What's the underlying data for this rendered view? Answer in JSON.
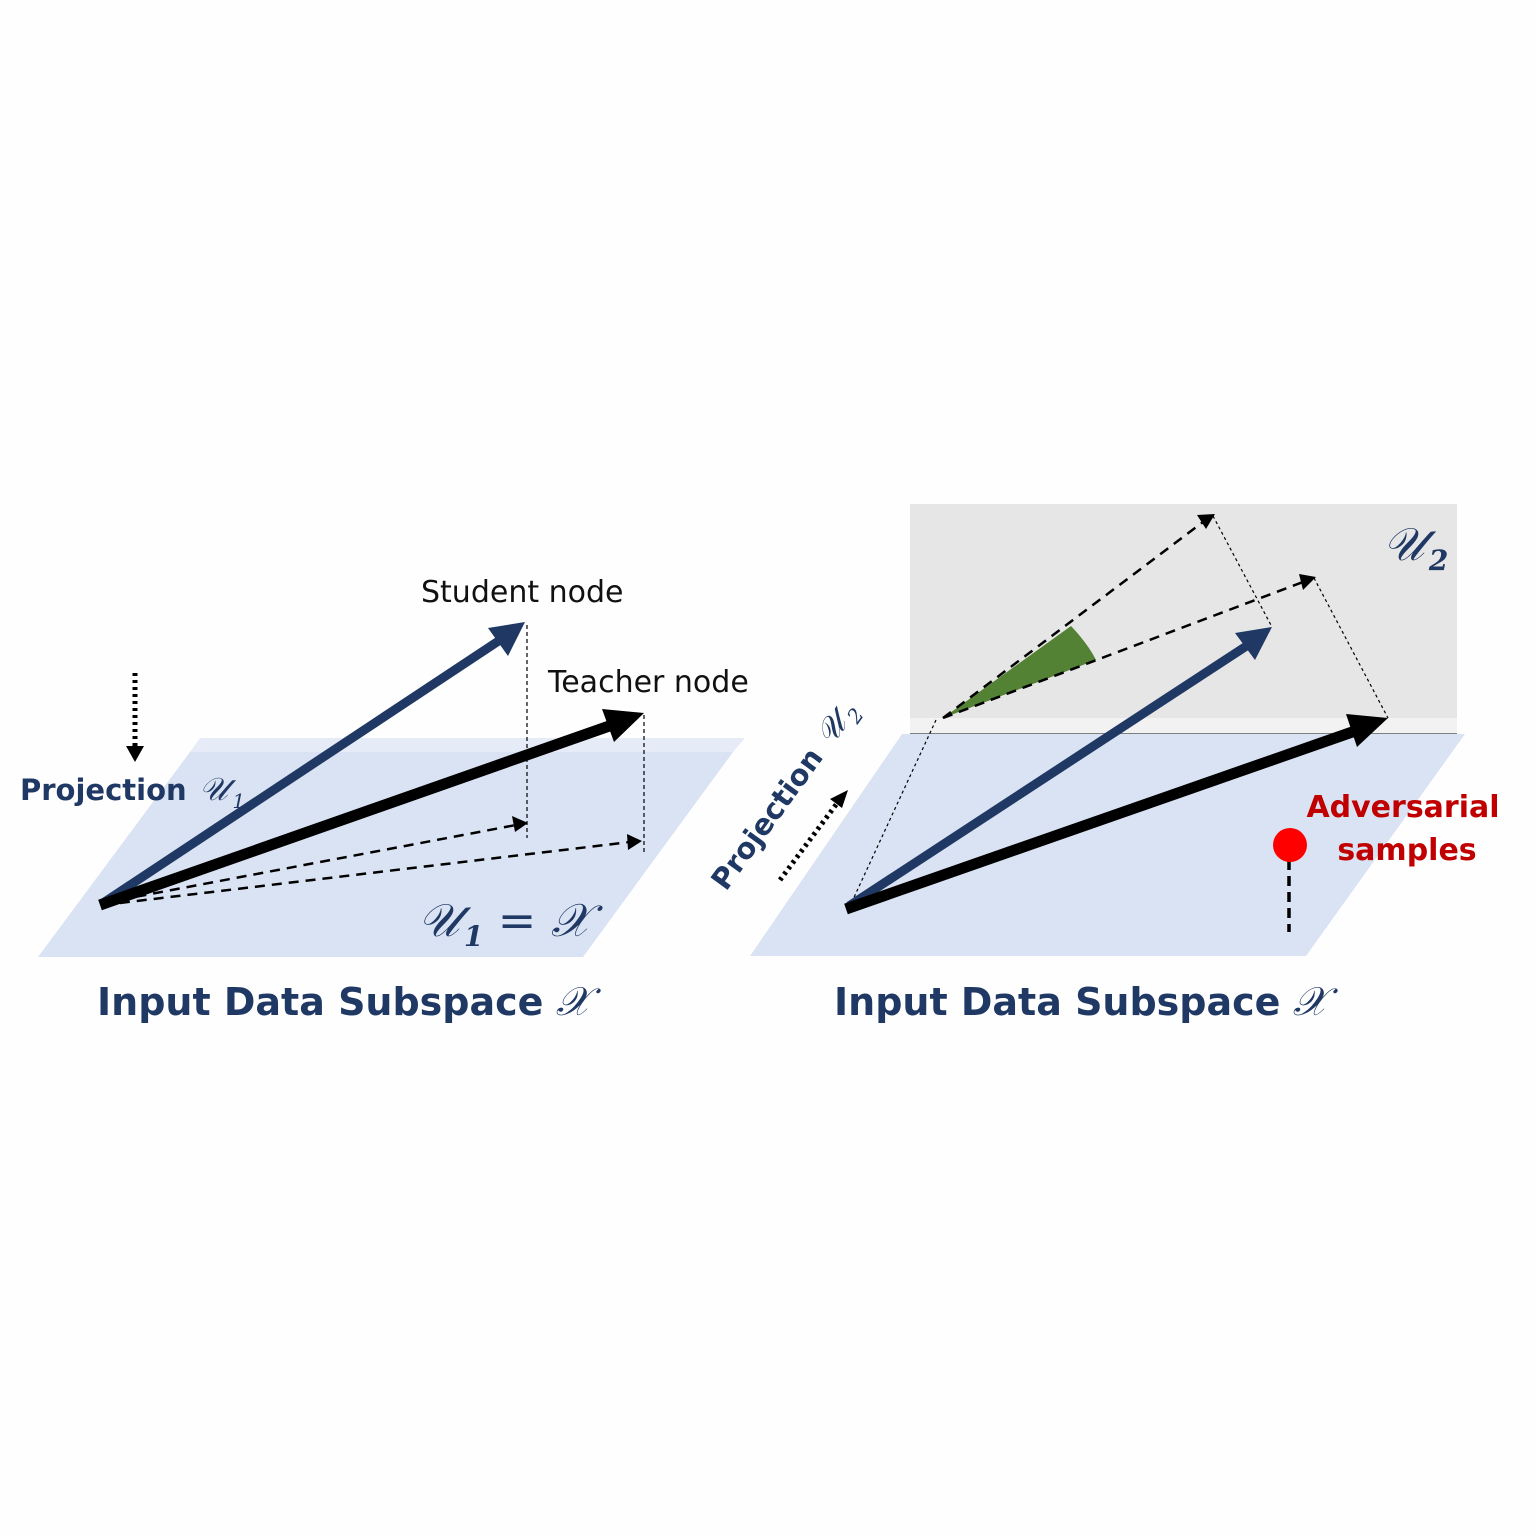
{
  "left_panel": {
    "student_label": "Student node",
    "teacher_label": "Teacher node",
    "projection_label": "Projection",
    "projection_symbol": "𝒰",
    "projection_subscript": "1",
    "plane_label_lhs": "𝒰",
    "plane_label_subscript": "1",
    "plane_label_rhs": "= 𝒳",
    "caption": "Input Data Subspace",
    "caption_symbol": "𝒳"
  },
  "right_panel": {
    "upper_space_symbol": "𝒰",
    "upper_space_subscript": "2",
    "projection_label": "Projection",
    "projection_symbol": "𝒰",
    "projection_subscript": "2",
    "adversarial_label_line1": "Adversarial",
    "adversarial_label_line2": "samples",
    "caption": "Input Data Subspace",
    "caption_symbol": "𝒳"
  },
  "colors": {
    "navy": "#1f3864",
    "black": "#000000",
    "plane_fill": "#dae3f3",
    "plane_edge": "#e6ecf7",
    "upper_space_fill": "#e7e6e6",
    "angle_fill": "#548235",
    "adversarial_red": "#c00000",
    "point_red": "#ff0000"
  }
}
